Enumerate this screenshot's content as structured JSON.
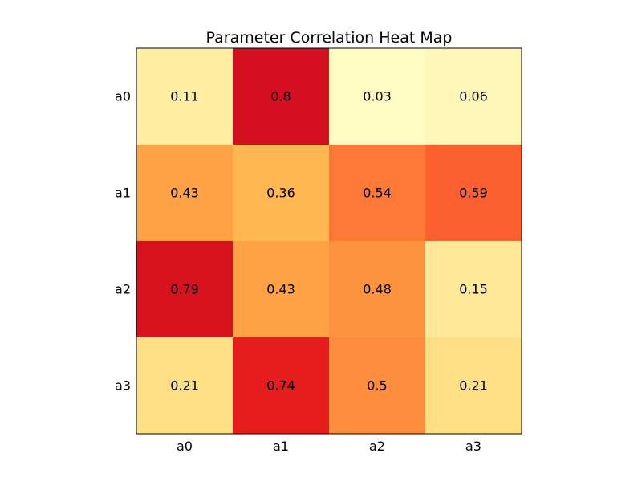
{
  "chart_data": {
    "type": "heatmap",
    "title": "Parameter Correlation Heat Map",
    "xlabel": "",
    "ylabel": "",
    "x_categories": [
      "a0",
      "a1",
      "a2",
      "a3"
    ],
    "y_categories": [
      "a0",
      "a1",
      "a2",
      "a3"
    ],
    "values": [
      [
        0.11,
        0.8,
        0.03,
        0.06
      ],
      [
        0.43,
        0.36,
        0.54,
        0.59
      ],
      [
        0.79,
        0.43,
        0.48,
        0.15
      ],
      [
        0.21,
        0.74,
        0.5,
        0.21
      ]
    ],
    "value_labels": [
      [
        "0.11",
        "0.8",
        "0.03",
        "0.06"
      ],
      [
        "0.43",
        "0.36",
        "0.54",
        "0.59"
      ],
      [
        "0.79",
        "0.43",
        "0.48",
        "0.15"
      ],
      [
        "0.21",
        "0.74",
        "0.5",
        "0.21"
      ]
    ],
    "colormap": "YlOrRd",
    "color_range": [
      0.0,
      0.8
    ],
    "grid": false,
    "legend": "none"
  }
}
